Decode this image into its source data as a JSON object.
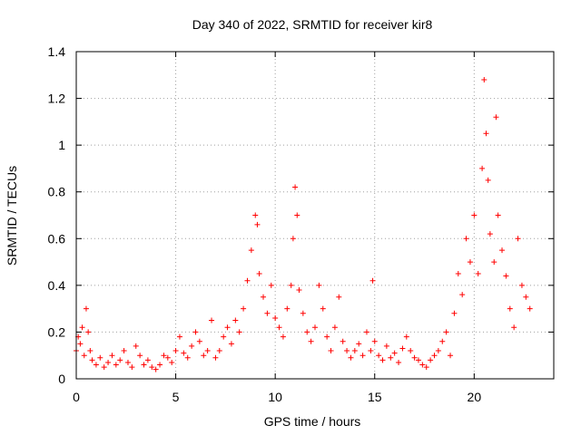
{
  "chart_data": {
    "type": "scatter",
    "title": "Day 340 of 2022, SRMTID for receiver kir8",
    "xlabel": "GPS time / hours",
    "ylabel": "SRMTID / TECUs",
    "xlim": [
      0,
      24
    ],
    "ylim": [
      0,
      1.4
    ],
    "xticks": [
      0,
      5,
      10,
      15,
      20
    ],
    "xtick_labels": [
      "0",
      "5",
      "10",
      "15",
      "20"
    ],
    "yticks": [
      0,
      0.2,
      0.4,
      0.6,
      0.8,
      1.0,
      1.2,
      1.4
    ],
    "ytick_labels": [
      "0",
      "0.2",
      "0.4",
      "0.6",
      "0.8",
      "1",
      "1.2",
      "1.4"
    ],
    "grid": true,
    "marker": "+",
    "color": "#ff0000",
    "series": [
      {
        "name": "kir8",
        "x": [
          0.0,
          0.1,
          0.2,
          0.3,
          0.4,
          0.5,
          0.6,
          0.7,
          0.8,
          1.0,
          1.2,
          1.4,
          1.6,
          1.8,
          2.0,
          2.2,
          2.4,
          2.6,
          2.8,
          3.0,
          3.2,
          3.4,
          3.6,
          3.8,
          4.0,
          4.2,
          4.4,
          4.6,
          4.8,
          5.0,
          5.2,
          5.4,
          5.6,
          5.8,
          6.0,
          6.2,
          6.4,
          6.6,
          6.8,
          7.0,
          7.2,
          7.4,
          7.6,
          7.8,
          8.0,
          8.2,
          8.4,
          8.6,
          8.8,
          9.0,
          9.1,
          9.2,
          9.4,
          9.6,
          9.8,
          10.0,
          10.2,
          10.4,
          10.6,
          10.8,
          10.9,
          11.0,
          11.1,
          11.2,
          11.4,
          11.6,
          11.8,
          12.0,
          12.2,
          12.4,
          12.6,
          12.8,
          13.0,
          13.2,
          13.4,
          13.6,
          13.8,
          14.0,
          14.2,
          14.4,
          14.6,
          14.8,
          14.9,
          15.0,
          15.2,
          15.4,
          15.6,
          15.8,
          16.0,
          16.2,
          16.4,
          16.6,
          16.8,
          17.0,
          17.2,
          17.4,
          17.6,
          17.8,
          18.0,
          18.2,
          18.4,
          18.6,
          18.8,
          19.0,
          19.2,
          19.4,
          19.6,
          19.8,
          20.0,
          20.2,
          20.4,
          20.5,
          20.6,
          20.7,
          20.8,
          21.0,
          21.1,
          21.2,
          21.4,
          21.6,
          21.8,
          22.0,
          22.2,
          22.4,
          22.6,
          22.8
        ],
        "y": [
          0.12,
          0.18,
          0.15,
          0.22,
          0.1,
          0.3,
          0.2,
          0.12,
          0.08,
          0.06,
          0.09,
          0.05,
          0.07,
          0.1,
          0.06,
          0.08,
          0.12,
          0.07,
          0.05,
          0.14,
          0.1,
          0.06,
          0.08,
          0.05,
          0.04,
          0.06,
          0.1,
          0.09,
          0.07,
          0.12,
          0.18,
          0.11,
          0.09,
          0.14,
          0.2,
          0.16,
          0.1,
          0.12,
          0.25,
          0.09,
          0.12,
          0.18,
          0.22,
          0.15,
          0.25,
          0.2,
          0.3,
          0.42,
          0.55,
          0.7,
          0.66,
          0.45,
          0.35,
          0.28,
          0.4,
          0.26,
          0.22,
          0.18,
          0.3,
          0.4,
          0.6,
          0.82,
          0.7,
          0.38,
          0.28,
          0.2,
          0.16,
          0.22,
          0.4,
          0.3,
          0.18,
          0.12,
          0.22,
          0.35,
          0.16,
          0.12,
          0.09,
          0.12,
          0.15,
          0.1,
          0.2,
          0.12,
          0.42,
          0.16,
          0.1,
          0.08,
          0.14,
          0.09,
          0.11,
          0.07,
          0.13,
          0.18,
          0.12,
          0.09,
          0.08,
          0.06,
          0.05,
          0.08,
          0.1,
          0.12,
          0.16,
          0.2,
          0.1,
          0.28,
          0.45,
          0.36,
          0.6,
          0.5,
          0.7,
          0.45,
          0.9,
          1.28,
          1.05,
          0.85,
          0.62,
          0.5,
          1.12,
          0.7,
          0.55,
          0.44,
          0.3,
          0.22,
          0.6,
          0.4,
          0.35,
          0.3
        ]
      }
    ]
  }
}
